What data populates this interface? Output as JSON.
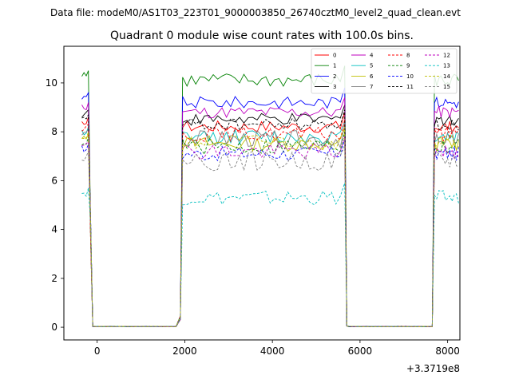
{
  "suptitle": "Data file: modeM0/AS1T03_223T01_9000003850_26740cztM0_level2_quad_clean.evt",
  "chart_data": {
    "type": "line",
    "title": "Quadrant 0 module wise count rates with 100.0s bins.",
    "xlabel": "",
    "ylabel": "",
    "x_offset_text": "+3.3719e8",
    "xlim": [
      -760,
      8280
    ],
    "ylim": [
      -0.52,
      11.5
    ],
    "x_ticks": [
      0,
      2000,
      4000,
      6000,
      8000
    ],
    "x_tick_labels": [
      "0",
      "2000",
      "4000",
      "6000",
      "8000"
    ],
    "y_ticks": [
      0,
      2,
      4,
      6,
      8,
      10
    ],
    "y_tick_labels": [
      "0",
      "2",
      "4",
      "6",
      "8",
      "10"
    ],
    "legend_location": "upper right",
    "segments": [
      {
        "start": -350,
        "end": -150,
        "step": 50,
        "shape": "up"
      },
      {
        "start": -100,
        "end": 1700,
        "step": 100,
        "shape": "zero"
      },
      {
        "start": 1800,
        "end": 1900,
        "step": 100,
        "shape": "ramp-up"
      },
      {
        "start": 1950,
        "end": 5600,
        "step": 100,
        "shape": "high"
      },
      {
        "start": 5650,
        "end": 5700,
        "step": 50,
        "shape": "ramp-down"
      },
      {
        "start": 5750,
        "end": 7650,
        "step": 100,
        "shape": "zero"
      },
      {
        "start": 7700,
        "end": 8250,
        "step": 50,
        "shape": "high"
      }
    ],
    "series": [
      {
        "name": "0",
        "color": "#ff0000",
        "style": "solid",
        "level": 8.2,
        "noise": 0.25
      },
      {
        "name": "1",
        "color": "#008000",
        "style": "solid",
        "level": 10.1,
        "noise": 0.3
      },
      {
        "name": "2",
        "color": "#0000ff",
        "style": "solid",
        "level": 9.2,
        "noise": 0.25
      },
      {
        "name": "3",
        "color": "#000000",
        "style": "solid",
        "level": 8.5,
        "noise": 0.25
      },
      {
        "name": "4",
        "color": "#bf00bf",
        "style": "solid",
        "level": 8.8,
        "noise": 0.25
      },
      {
        "name": "5",
        "color": "#00bfbf",
        "style": "solid",
        "level": 7.8,
        "noise": 0.3
      },
      {
        "name": "6",
        "color": "#bfbf00",
        "style": "solid",
        "level": 7.5,
        "noise": 0.3
      },
      {
        "name": "7",
        "color": "#808080",
        "style": "solid",
        "level": 7.7,
        "noise": 0.35
      },
      {
        "name": "8",
        "color": "#ff0000",
        "style": "dashed",
        "level": 7.9,
        "noise": 0.3
      },
      {
        "name": "9",
        "color": "#008000",
        "style": "dashed",
        "level": 7.4,
        "noise": 0.35
      },
      {
        "name": "10",
        "color": "#0000ff",
        "style": "dashed",
        "level": 7.1,
        "noise": 0.3
      },
      {
        "name": "11",
        "color": "#000000",
        "style": "dashed",
        "level": 8.3,
        "noise": 0.25
      },
      {
        "name": "12",
        "color": "#bf00bf",
        "style": "dashed",
        "level": 7.2,
        "noise": 0.35
      },
      {
        "name": "13",
        "color": "#00bfbf",
        "style": "dashed",
        "level": 5.3,
        "noise": 0.3
      },
      {
        "name": "14",
        "color": "#bfbf00",
        "style": "dashed",
        "level": 7.6,
        "noise": 0.3
      },
      {
        "name": "15",
        "color": "#808080",
        "style": "dashed",
        "level": 6.8,
        "noise": 0.4
      }
    ]
  }
}
